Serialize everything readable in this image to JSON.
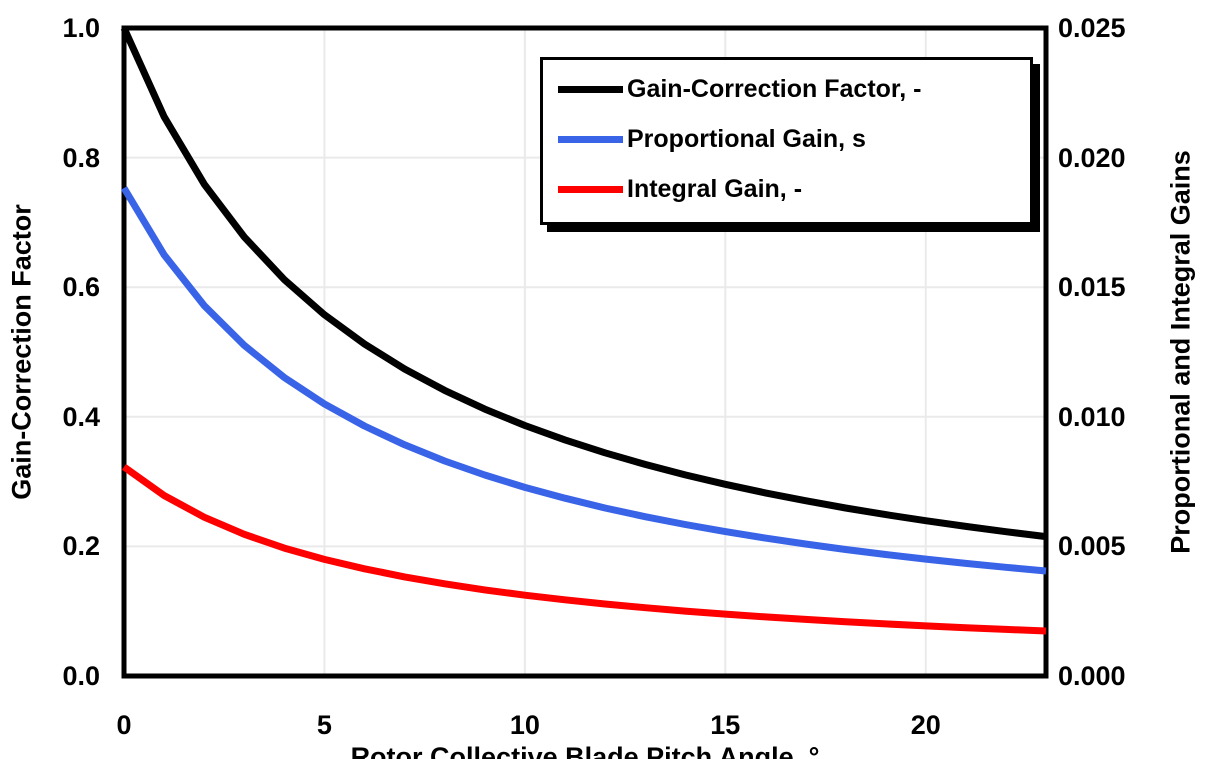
{
  "chart_data": {
    "type": "line",
    "title": "",
    "xlabel": "Rotor Collective Blade Pitch Angle, °",
    "ylabel_left": "Gain-Correction Factor",
    "ylabel_right": "Proportional and Integral Gains",
    "xlim": [
      0,
      23
    ],
    "left_axis": {
      "lim": [
        0.0,
        1.0
      ],
      "ticks": [
        "1.0",
        "0.8",
        "0.6",
        "0.4",
        "0.2",
        "0.0"
      ]
    },
    "right_axis": {
      "lim": [
        0.0,
        0.025
      ],
      "ticks": [
        "0.025",
        "0.020",
        "0.015",
        "0.010",
        "0.005",
        "0.000"
      ]
    },
    "x_ticks": [
      "0",
      "5",
      "10",
      "15",
      "20"
    ],
    "grid": true,
    "grid_color": "#EAEAEA",
    "frame_color": "#000000",
    "legend_position": "top-center-inside",
    "x": [
      0,
      1,
      2,
      3,
      4,
      5,
      6,
      7,
      8,
      9,
      10,
      11,
      12,
      13,
      14,
      15,
      16,
      17,
      18,
      19,
      20,
      21,
      22,
      23
    ],
    "series": [
      {
        "name": "Gain-Correction Factor, -",
        "color": "#000000",
        "axis": "left",
        "values": [
          1.0,
          0.8631,
          0.7591,
          0.6775,
          0.6117,
          0.5576,
          0.5123,
          0.4738,
          0.4407,
          0.4119,
          0.3866,
          0.3643,
          0.3444,
          0.3265,
          0.3104,
          0.2959,
          0.2826,
          0.2705,
          0.2593,
          0.2491,
          0.2396,
          0.2308,
          0.2227,
          0.2151
        ]
      },
      {
        "name": "Proportional Gain, s",
        "color": "#3A64E8",
        "axis": "right",
        "values": [
          0.018827,
          0.016249,
          0.014291,
          0.012755,
          0.011517,
          0.010498,
          0.009645,
          0.00892,
          0.008296,
          0.007754,
          0.007278,
          0.006858,
          0.006483,
          0.006147,
          0.005844,
          0.00557,
          0.00532,
          0.005092,
          0.004882,
          0.004689,
          0.004511,
          0.004346,
          0.004192,
          0.004049
        ]
      },
      {
        "name": "Integral Gain, -",
        "color": "#FF0000",
        "axis": "right",
        "values": [
          0.008069,
          0.006964,
          0.006125,
          0.005467,
          0.004936,
          0.004499,
          0.004134,
          0.003823,
          0.003556,
          0.003323,
          0.003119,
          0.002939,
          0.002778,
          0.002634,
          0.002505,
          0.002387,
          0.00228,
          0.002182,
          0.002092,
          0.00201,
          0.001933,
          0.001862,
          0.001797,
          0.001735
        ]
      }
    ]
  }
}
